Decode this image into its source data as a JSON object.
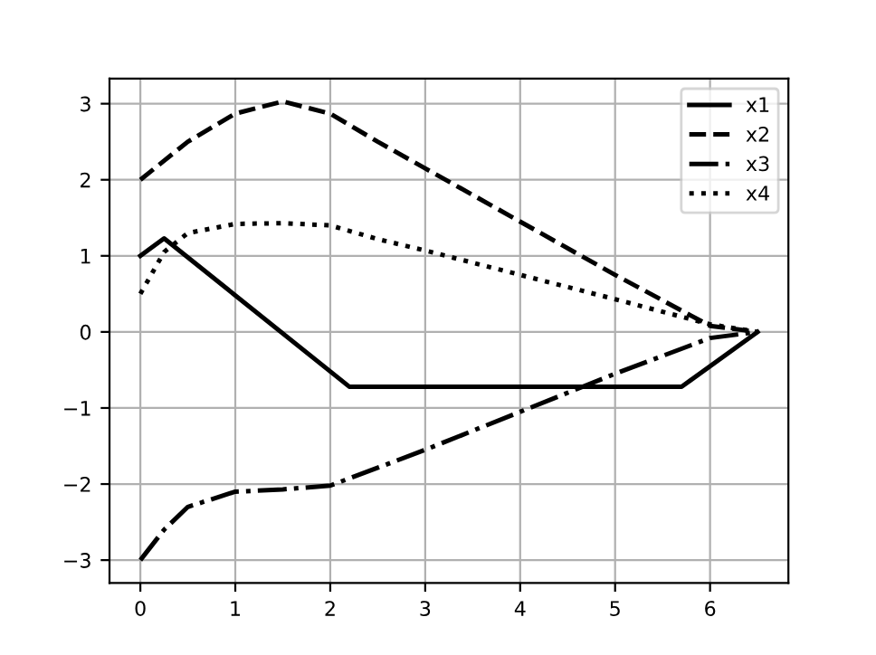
{
  "chart_data": {
    "type": "line",
    "xlim": [
      -0.325,
      6.825
    ],
    "ylim": [
      -3.3,
      3.33
    ],
    "xticks": [
      0,
      1,
      2,
      3,
      4,
      5,
      6
    ],
    "yticks": [
      -3,
      -2,
      -1,
      0,
      1,
      2,
      3
    ],
    "grid": true,
    "legend": "top right",
    "series": [
      {
        "name": "x1",
        "color": "#000000",
        "line_style": "solid",
        "x": [
          0,
          0.25,
          2.2,
          5.7,
          6.5
        ],
        "values": [
          1,
          1.23,
          -0.72,
          -0.72,
          0
        ]
      },
      {
        "name": "x2",
        "color": "#000000",
        "line_style": "dashed",
        "x": [
          0,
          0.5,
          1,
          1.5,
          2,
          2.5,
          3,
          4,
          5,
          6,
          6.5
        ],
        "values": [
          2,
          2.5,
          2.87,
          3.03,
          2.87,
          2.5,
          2.15,
          1.45,
          0.75,
          0.08,
          0
        ]
      },
      {
        "name": "x3",
        "color": "#000000",
        "line_style": "dashdot",
        "x": [
          0,
          0.25,
          0.5,
          1,
          1.5,
          2,
          3,
          4,
          5,
          6,
          6.5
        ],
        "values": [
          -3,
          -2.6,
          -2.3,
          -2.1,
          -2.07,
          -2.02,
          -1.55,
          -1.05,
          -0.55,
          -0.08,
          0
        ]
      },
      {
        "name": "x4",
        "color": "#000000",
        "line_style": "dotted",
        "x": [
          0,
          0.25,
          0.5,
          1,
          1.5,
          2,
          2.5,
          3,
          4,
          5,
          6,
          6.5
        ],
        "values": [
          0.5,
          1.05,
          1.3,
          1.42,
          1.43,
          1.4,
          1.22,
          1.07,
          0.75,
          0.43,
          0.1,
          0
        ]
      }
    ]
  }
}
